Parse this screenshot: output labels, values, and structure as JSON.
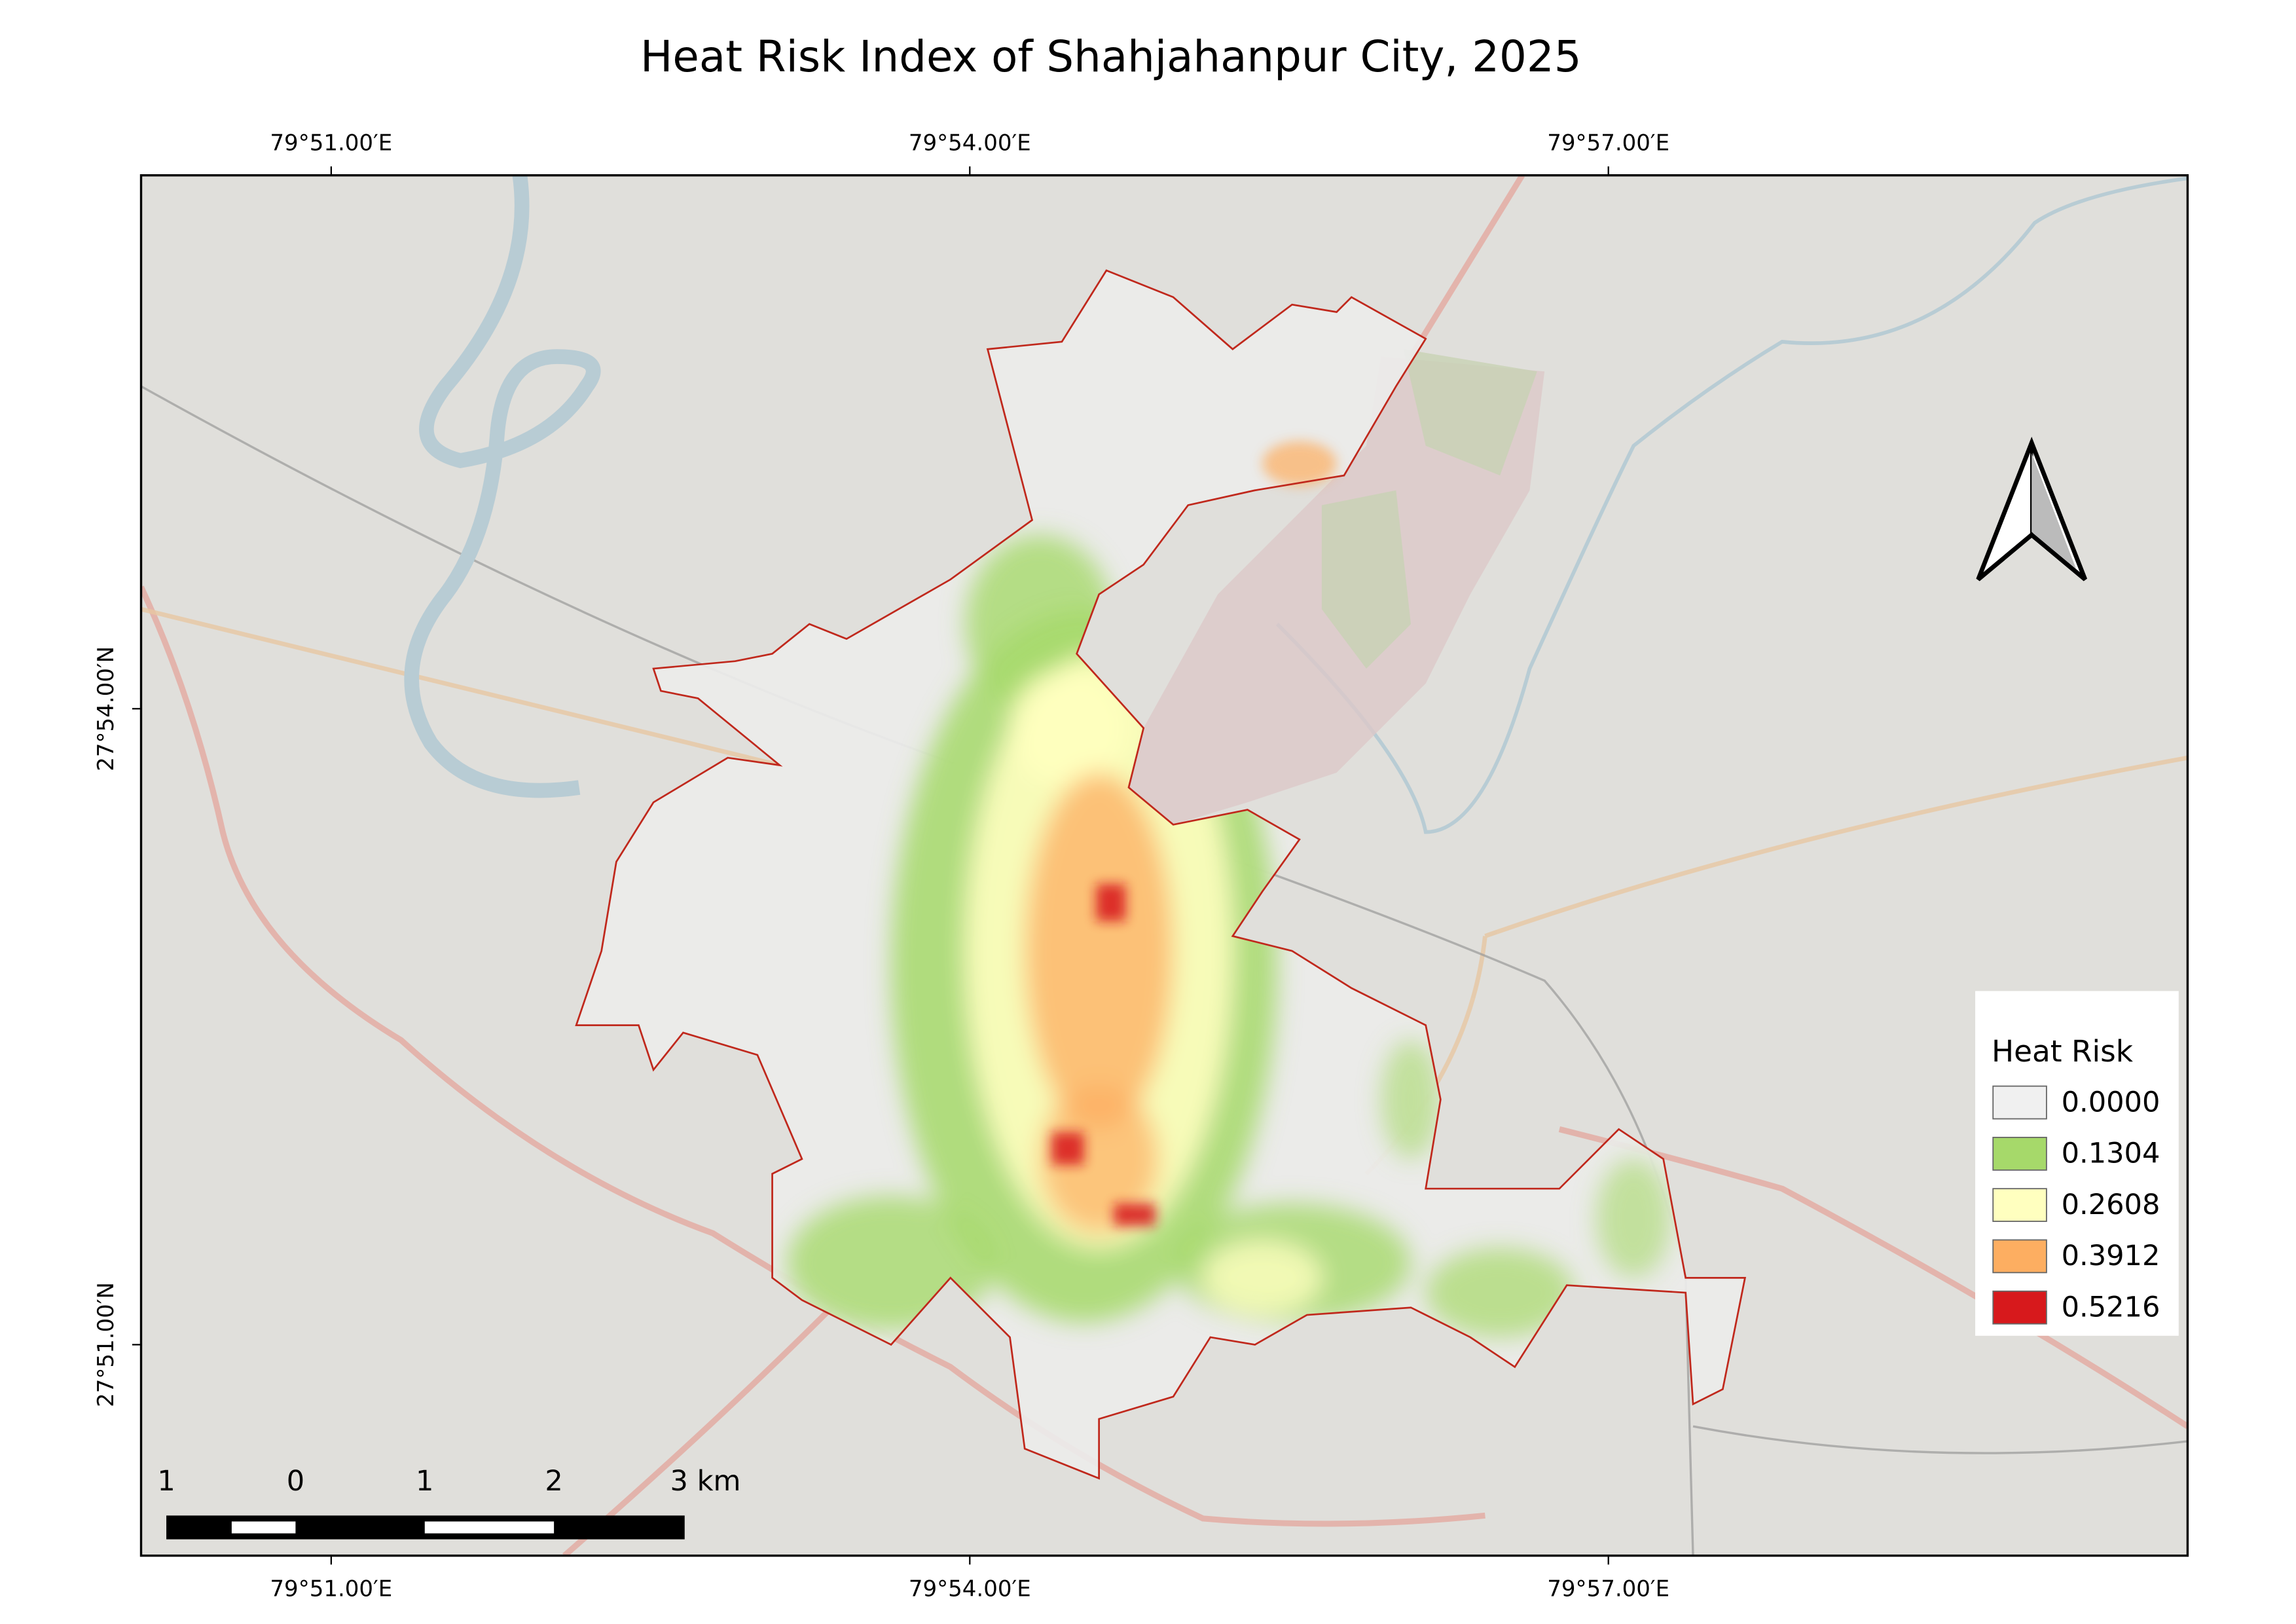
{
  "title": "Heat Risk Index of Shahjahanpur City, 2025",
  "map": {
    "top_labels": [
      "79°51.00′E",
      "79°54.00′E",
      "79°57.00′E"
    ],
    "bottom_labels": [
      "79°51.00′E",
      "79°54.00′E",
      "79°57.00′E"
    ],
    "left_labels": [
      "27°54.00′N",
      "27°51.00′N"
    ]
  },
  "legend": {
    "title": "Heat Risk",
    "items": [
      {
        "label": "0.0000",
        "color": "#f0f0f0"
      },
      {
        "label": "0.1304",
        "color": "#a6d96a"
      },
      {
        "label": "0.2608",
        "color": "#ffffbf"
      },
      {
        "label": "0.3912",
        "color": "#fdae61"
      },
      {
        "label": "0.5216",
        "color": "#d7191c"
      }
    ]
  },
  "scale_bar": {
    "labels": [
      "1",
      "0",
      "1",
      "2",
      "3 km"
    ]
  }
}
